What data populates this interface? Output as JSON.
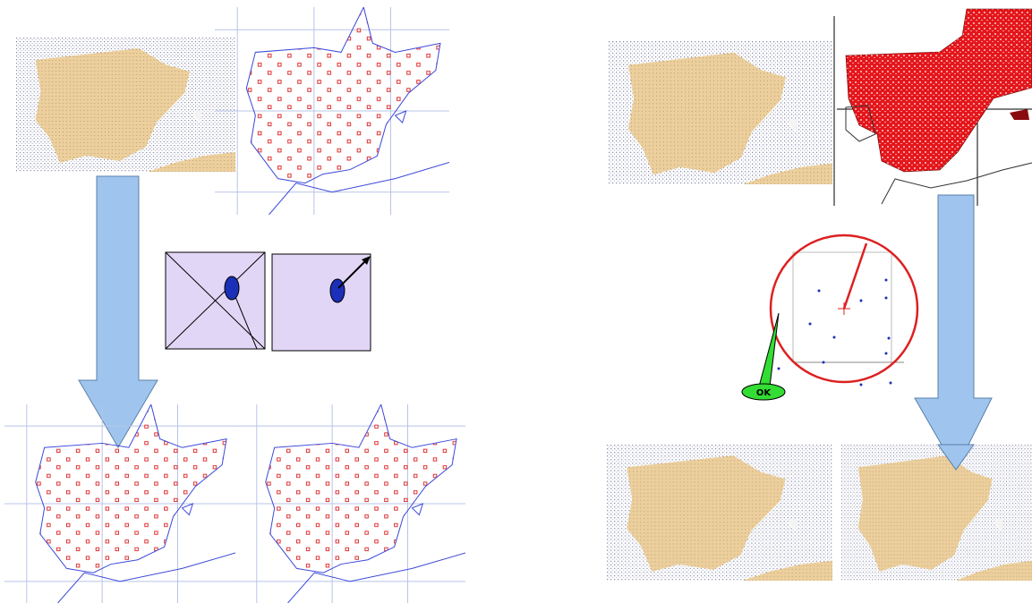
{
  "callout": {
    "label": "OK"
  }
}
